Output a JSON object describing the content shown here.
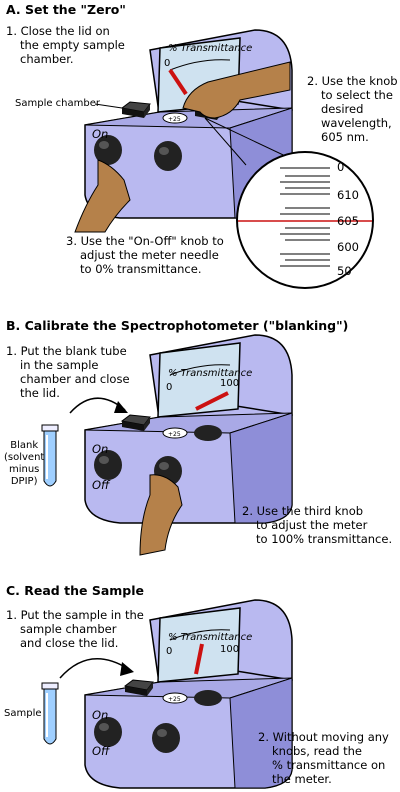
{
  "panels": [
    {
      "heading": "A. Set the \"Zero\"",
      "steps": [
        [
          "1. Close the lid on",
          "the empty sample",
          "chamber."
        ],
        [
          "2. Use the knob",
          "to select the",
          "desired",
          "wavelength,",
          "605 nm."
        ],
        [
          "3. Use the \"On-Off\" knob to",
          "adjust the meter needle",
          "to 0% transmittance."
        ]
      ],
      "sample_chamber_label": "Sample chamber",
      "meter_title": "% Transmittance",
      "meter_zero": "0",
      "wavelength_ticks": [
        "610",
        "605",
        "600",
        "50"
      ],
      "lens_top_tick": "0"
    },
    {
      "heading": "B. Calibrate the Spectrophotometer (\"blanking\")",
      "steps": [
        [
          "1. Put the blank tube",
          "in the sample",
          "chamber and close",
          "the lid."
        ],
        [
          "2. Use the third knob",
          "to adjust the meter",
          "to 100% transmittance."
        ]
      ],
      "tube_label": [
        "Blank",
        "(solvent",
        "minus",
        "DPIP)"
      ],
      "meter_title": "% Transmittance",
      "meter_zero": "0",
      "meter_hundred": "100"
    },
    {
      "heading": "C. Read the Sample",
      "steps": [
        [
          "1. Put the sample in the",
          "sample chamber",
          "and close the lid."
        ],
        [
          "2. Without moving any",
          "knobs, read the",
          "% transmittance on",
          "the meter."
        ]
      ],
      "tube_label": [
        "Sample"
      ],
      "meter_title": "% Transmittance",
      "meter_zero": "0",
      "meter_hundred": "100"
    }
  ],
  "device_labels": {
    "on": "On",
    "off": "Off"
  },
  "colors": {
    "device": "#b9b9f0",
    "device_dark": "#8e8ed8",
    "meter_face": "#cfe2f0",
    "needle": "#cc1111",
    "skin": "#b5814a",
    "tube": "#9fcfff"
  }
}
